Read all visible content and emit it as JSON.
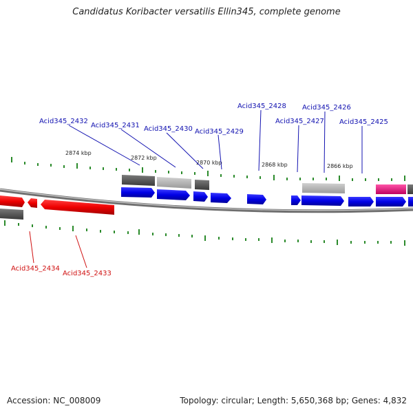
{
  "title": "Candidatus Koribacter versatilis Ellin345, complete genome",
  "footer": {
    "accession": "Accession: NC_008009",
    "topology": "Topology: circular; Length: 5,650,368 bp; Genes: 4,832"
  },
  "scale_labels": [
    "2874 kbp",
    "2872 kbp",
    "2870 kbp",
    "2868 kbp",
    "2866 kbp"
  ],
  "gene_labels_top": [
    "Acid345_2432",
    "Acid345_2431",
    "Acid345_2430",
    "Acid345_2429",
    "Acid345_2428",
    "Acid345_2427",
    "Acid345_2426",
    "Acid345_2425"
  ],
  "gene_labels_bottom": [
    "Acid345_2434",
    "Acid345_2433"
  ],
  "colors": {
    "forward_gene": "#0a00e0",
    "reverse_gene": "#ee0000",
    "label_forward": "#1010b0",
    "label_reverse": "#d01010",
    "tick": "#228822",
    "backbone": "#777777",
    "pink_feature": "#e8157c",
    "dark_feature": "#5a5a5a",
    "light_feature": "#b0b0b0"
  }
}
